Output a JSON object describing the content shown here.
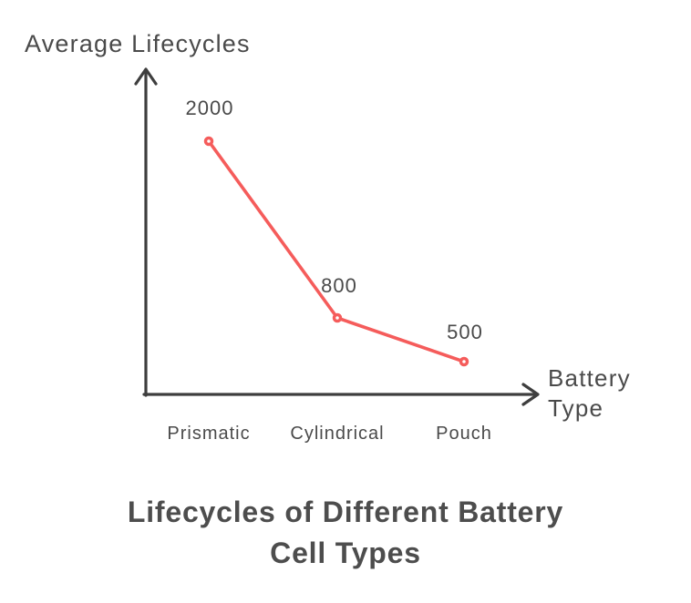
{
  "chart": {
    "title_lines": [
      "Lifecycles of Different Battery",
      "Cell Types"
    ]
  },
  "chart_data": {
    "type": "line",
    "title": "Lifecycles of Different Battery Cell Types",
    "xlabel": "Battery Type",
    "ylabel": "Average Lifecycles",
    "categories": [
      "Prismatic",
      "Cylindrical",
      "Pouch"
    ],
    "values": [
      2000,
      800,
      500
    ],
    "data_labels": [
      "2000",
      "800",
      "500"
    ],
    "grid": false,
    "legend": false,
    "marker_style": "open-circle",
    "line_color": "#f55c5b",
    "axis_color": "#3e3e3e",
    "text_color": "#4a4a4a",
    "title_color": "#4d4d4d"
  }
}
